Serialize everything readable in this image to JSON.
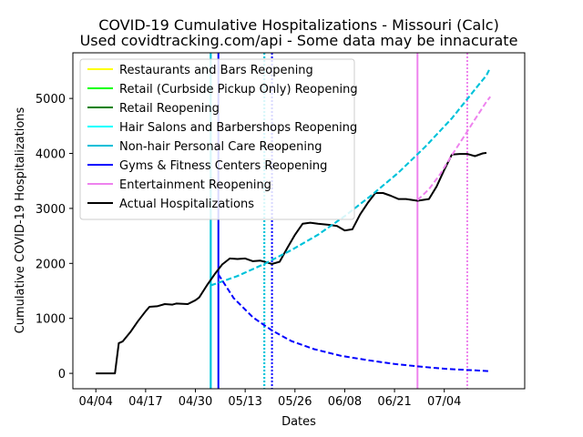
{
  "chart_data": {
    "type": "line",
    "title": "COVID-19 Cumulative Hospitalizations - Missouri (Calc)",
    "subtitle": "Used covidtracking.com/api - Some data may be innacurate",
    "xlabel": "Dates",
    "ylabel": "Cumulative COVID-19 Hospitalizations",
    "x_start_date": "2020-04-04",
    "xlim": [
      "2020-03-29",
      "2020-07-25"
    ],
    "ylim": [
      -280,
      5830
    ],
    "x_ticks": [
      {
        "date": "2020-04-04",
        "label": "04/04"
      },
      {
        "date": "2020-04-17",
        "label": "04/17"
      },
      {
        "date": "2020-04-30",
        "label": "04/30"
      },
      {
        "date": "2020-05-13",
        "label": "05/13"
      },
      {
        "date": "2020-05-26",
        "label": "05/26"
      },
      {
        "date": "2020-06-08",
        "label": "06/08"
      },
      {
        "date": "2020-06-21",
        "label": "06/21"
      },
      {
        "date": "2020-07-04",
        "label": "07/04"
      }
    ],
    "y_ticks": [
      0,
      1000,
      2000,
      3000,
      4000,
      5000
    ],
    "legend": {
      "position": "top-left",
      "entries": [
        {
          "label": "Restaurants and Bars Reopening",
          "color": "#ffff00"
        },
        {
          "label": "Retail (Curbside Pickup Only) Reopening",
          "color": "#00ff00"
        },
        {
          "label": "Retail Reopening",
          "color": "#008000"
        },
        {
          "label": "Hair Salons and Barbershops Reopening",
          "color": "#00ffff"
        },
        {
          "label": "Non-hair Personal Care Reopening",
          "color": "#00bfd8"
        },
        {
          "label": "Gyms & Fitness Centers Reopening",
          "color": "#0000ff"
        },
        {
          "label": "Entertainment Reopening",
          "color": "#ee82ee"
        },
        {
          "label": "Actual Hospitalizations",
          "color": "#000000"
        }
      ]
    },
    "event_lines": [
      {
        "date": "2020-05-04",
        "color": "#00ffff",
        "style": "solid"
      },
      {
        "date": "2020-05-04",
        "color": "#00bfd8",
        "style": "solid"
      },
      {
        "date": "2020-05-06",
        "color": "#0000ff",
        "style": "solid"
      },
      {
        "date": "2020-05-18",
        "color": "#00ffff",
        "style": "dotted"
      },
      {
        "date": "2020-05-18",
        "color": "#00bfd8",
        "style": "dotted"
      },
      {
        "date": "2020-05-20",
        "color": "#0000ff",
        "style": "dotted"
      },
      {
        "date": "2020-06-27",
        "color": "#ee82ee",
        "style": "solid"
      },
      {
        "date": "2020-07-10",
        "color": "#ee82ee",
        "style": "dotted"
      }
    ],
    "series": [
      {
        "name": "Actual Hospitalizations",
        "color": "#000000",
        "style": "solid",
        "points": [
          [
            "2020-04-04",
            0
          ],
          [
            "2020-04-06",
            0
          ],
          [
            "2020-04-09",
            0
          ],
          [
            "2020-04-10",
            550
          ],
          [
            "2020-04-11",
            580
          ],
          [
            "2020-04-13",
            750
          ],
          [
            "2020-04-15",
            950
          ],
          [
            "2020-04-17",
            1130
          ],
          [
            "2020-04-18",
            1210
          ],
          [
            "2020-04-20",
            1220
          ],
          [
            "2020-04-22",
            1260
          ],
          [
            "2020-04-24",
            1250
          ],
          [
            "2020-04-25",
            1270
          ],
          [
            "2020-04-28",
            1260
          ],
          [
            "2020-04-30",
            1330
          ],
          [
            "2020-05-01",
            1380
          ],
          [
            "2020-05-03",
            1600
          ],
          [
            "2020-05-05",
            1800
          ],
          [
            "2020-05-07",
            1980
          ],
          [
            "2020-05-09",
            2090
          ],
          [
            "2020-05-11",
            2080
          ],
          [
            "2020-05-13",
            2090
          ],
          [
            "2020-05-15",
            2040
          ],
          [
            "2020-05-17",
            2050
          ],
          [
            "2020-05-19",
            2010
          ],
          [
            "2020-05-20",
            1990
          ],
          [
            "2020-05-22",
            2030
          ],
          [
            "2020-05-24",
            2280
          ],
          [
            "2020-05-26",
            2520
          ],
          [
            "2020-05-28",
            2720
          ],
          [
            "2020-05-30",
            2740
          ],
          [
            "2020-06-01",
            2720
          ],
          [
            "2020-06-04",
            2700
          ],
          [
            "2020-06-06",
            2680
          ],
          [
            "2020-06-08",
            2600
          ],
          [
            "2020-06-10",
            2620
          ],
          [
            "2020-06-12",
            2890
          ],
          [
            "2020-06-14",
            3100
          ],
          [
            "2020-06-16",
            3280
          ],
          [
            "2020-06-18",
            3280
          ],
          [
            "2020-06-20",
            3230
          ],
          [
            "2020-06-22",
            3170
          ],
          [
            "2020-06-24",
            3170
          ],
          [
            "2020-06-27",
            3140
          ],
          [
            "2020-06-30",
            3170
          ],
          [
            "2020-07-02",
            3400
          ],
          [
            "2020-07-04",
            3700
          ],
          [
            "2020-07-06",
            3980
          ],
          [
            "2020-07-08",
            3990
          ],
          [
            "2020-07-10",
            3990
          ],
          [
            "2020-07-12",
            3950
          ],
          [
            "2020-07-14",
            4000
          ],
          [
            "2020-07-15",
            4010
          ]
        ]
      },
      {
        "name": "Hair Salons and Barbershops Reopening",
        "color": "#00ffff",
        "style": "dashed",
        "points": [
          [
            "2020-05-04",
            1600
          ],
          [
            "2020-05-11",
            1770
          ],
          [
            "2020-05-18",
            1990
          ],
          [
            "2020-05-25",
            2240
          ],
          [
            "2020-06-01",
            2520
          ],
          [
            "2020-06-08",
            2860
          ],
          [
            "2020-06-15",
            3240
          ],
          [
            "2020-06-22",
            3650
          ],
          [
            "2020-06-29",
            4120
          ],
          [
            "2020-07-06",
            4640
          ],
          [
            "2020-07-13",
            5250
          ],
          [
            "2020-07-15",
            5420
          ],
          [
            "2020-07-16",
            5560
          ]
        ]
      },
      {
        "name": "Non-hair Personal Care Reopening",
        "color": "#00bfd8",
        "style": "dashed",
        "points": [
          [
            "2020-05-04",
            1600
          ],
          [
            "2020-05-11",
            1770
          ],
          [
            "2020-05-18",
            1990
          ],
          [
            "2020-05-25",
            2240
          ],
          [
            "2020-06-01",
            2520
          ],
          [
            "2020-06-08",
            2860
          ],
          [
            "2020-06-15",
            3240
          ],
          [
            "2020-06-22",
            3650
          ],
          [
            "2020-06-29",
            4120
          ],
          [
            "2020-07-06",
            4640
          ],
          [
            "2020-07-13",
            5250
          ],
          [
            "2020-07-15",
            5420
          ],
          [
            "2020-07-16",
            5560
          ]
        ]
      },
      {
        "name": "Gyms & Fitness Centers Reopening",
        "color": "#0000ff",
        "style": "dashed",
        "points": [
          [
            "2020-05-06",
            1800
          ],
          [
            "2020-05-10",
            1370
          ],
          [
            "2020-05-15",
            1020
          ],
          [
            "2020-05-20",
            780
          ],
          [
            "2020-05-25",
            590
          ],
          [
            "2020-05-31",
            440
          ],
          [
            "2020-06-07",
            320
          ],
          [
            "2020-06-14",
            240
          ],
          [
            "2020-06-21",
            170
          ],
          [
            "2020-06-28",
            120
          ],
          [
            "2020-07-05",
            80
          ],
          [
            "2020-07-12",
            55
          ],
          [
            "2020-07-16",
            40
          ]
        ]
      },
      {
        "name": "Entertainment Reopening",
        "color": "#ee82ee",
        "style": "dashed",
        "points": [
          [
            "2020-06-27",
            3150
          ],
          [
            "2020-06-30",
            3350
          ],
          [
            "2020-07-03",
            3630
          ],
          [
            "2020-07-06",
            3970
          ],
          [
            "2020-07-09",
            4290
          ],
          [
            "2020-07-12",
            4620
          ],
          [
            "2020-07-15",
            4940
          ],
          [
            "2020-07-16",
            5030
          ]
        ]
      }
    ]
  }
}
